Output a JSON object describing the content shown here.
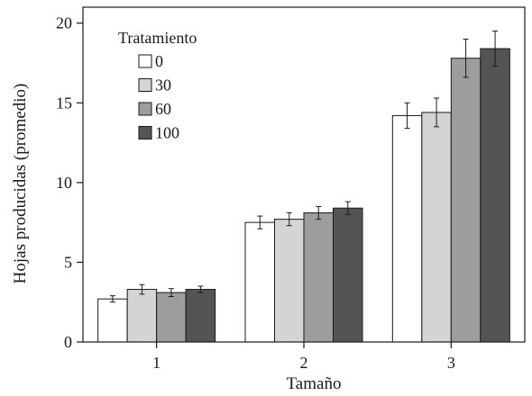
{
  "chart_data": {
    "type": "bar",
    "title": "",
    "xlabel": "Tamaño",
    "ylabel": "Hojas producidas (promedio)",
    "ylim": [
      0,
      21
    ],
    "yticks": [
      0,
      5,
      10,
      15,
      20
    ],
    "categories": [
      "1",
      "2",
      "3"
    ],
    "legend": {
      "title": "Tratamiento",
      "placement": "top-left"
    },
    "grid": false,
    "series": [
      {
        "name": "0",
        "color": "#ffffff",
        "values": [
          2.7,
          7.5,
          14.2
        ],
        "errors": [
          0.2,
          0.4,
          0.8
        ]
      },
      {
        "name": "30",
        "color": "#d4d4d4",
        "values": [
          3.3,
          7.7,
          14.4
        ],
        "errors": [
          0.3,
          0.4,
          0.9
        ]
      },
      {
        "name": "60",
        "color": "#9d9d9f",
        "values": [
          3.1,
          8.1,
          17.8
        ],
        "errors": [
          0.25,
          0.4,
          1.2
        ]
      },
      {
        "name": "100",
        "color": "#545456",
        "values": [
          3.3,
          8.4,
          18.4
        ],
        "errors": [
          0.2,
          0.4,
          1.1
        ]
      }
    ]
  }
}
